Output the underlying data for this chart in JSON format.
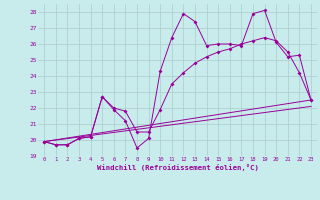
{
  "xlabel": "Windchill (Refroidissement éolien,°C)",
  "bg_color": "#c8ecec",
  "line_color": "#990099",
  "grid_color": "#aacccc",
  "xlim": [
    -0.5,
    23.5
  ],
  "ylim": [
    19,
    28.5
  ],
  "yticks": [
    19,
    20,
    21,
    22,
    23,
    24,
    25,
    26,
    27,
    28
  ],
  "xticks": [
    0,
    1,
    2,
    3,
    4,
    5,
    6,
    7,
    8,
    9,
    10,
    11,
    12,
    13,
    14,
    15,
    16,
    17,
    18,
    19,
    20,
    21,
    22,
    23
  ],
  "series1_x": [
    0,
    1,
    2,
    3,
    4,
    5,
    6,
    7,
    8,
    9,
    10,
    11,
    12,
    13,
    14,
    15,
    16,
    17,
    18,
    19,
    20,
    21,
    22,
    23
  ],
  "series1_y": [
    19.9,
    19.7,
    19.7,
    20.1,
    20.2,
    22.7,
    21.9,
    21.2,
    19.5,
    20.1,
    24.3,
    26.4,
    27.9,
    27.4,
    25.9,
    26.0,
    26.0,
    25.9,
    27.9,
    28.1,
    26.1,
    25.2,
    25.3,
    22.5
  ],
  "series2_x": [
    0,
    1,
    2,
    3,
    4,
    5,
    6,
    7,
    8,
    9,
    10,
    11,
    12,
    13,
    14,
    15,
    16,
    17,
    18,
    19,
    20,
    21,
    22,
    23
  ],
  "series2_y": [
    19.9,
    19.7,
    19.7,
    20.1,
    20.2,
    22.7,
    22.0,
    21.8,
    20.5,
    20.5,
    21.9,
    23.5,
    24.2,
    24.8,
    25.2,
    25.5,
    25.7,
    26.0,
    26.2,
    26.4,
    26.2,
    25.5,
    24.2,
    22.5
  ],
  "series3_x": [
    0,
    23
  ],
  "series3_y": [
    19.9,
    22.5
  ],
  "series4_x": [
    0,
    23
  ],
  "series4_y": [
    19.9,
    22.1
  ]
}
